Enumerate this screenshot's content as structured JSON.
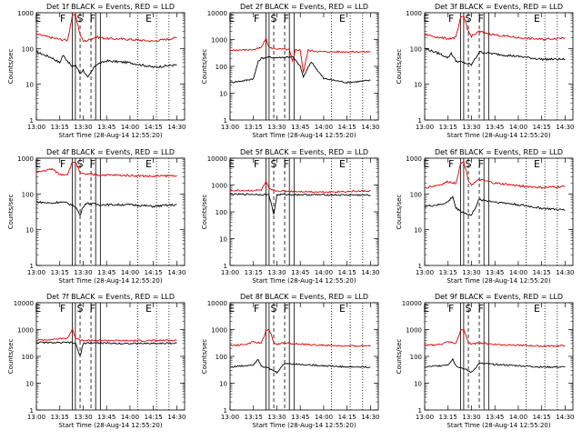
{
  "x_tick_labels": [
    "13:00",
    "13:15",
    "13:30",
    "13:45",
    "14:00",
    "14:15",
    "14:30"
  ],
  "y_tick_labels": [
    "1",
    "10",
    "100",
    "1000",
    "10000"
  ],
  "x_axis_label": "Start Time (28-Aug-14 12:55:20)",
  "y_axis_label": "Counts/sec",
  "colors": {
    "events": "#000000",
    "lld": "#dd0000",
    "axes": "#000000"
  },
  "chart_data": [
    {
      "type": "line",
      "title": "Det 1f BLACK = Events, RED = LLD",
      "ylim": [
        1,
        1000
      ],
      "log_y": true,
      "region_labels": [
        "E",
        "F",
        "S",
        "F",
        "E"
      ],
      "series": [
        {
          "name": "Events",
          "x": [
            "13:00",
            "13:10",
            "13:15",
            "13:17",
            "13:20",
            "13:23",
            "13:25",
            "13:28",
            "13:30",
            "13:33",
            "13:38",
            "13:45",
            "14:00",
            "14:15",
            "14:30"
          ],
          "values": [
            80,
            55,
            40,
            65,
            45,
            30,
            35,
            20,
            25,
            15,
            35,
            45,
            40,
            30,
            35
          ]
        },
        {
          "name": "LLD",
          "x": [
            "13:00",
            "13:10",
            "13:15",
            "13:20",
            "13:23",
            "13:25",
            "13:28",
            "13:30",
            "13:33",
            "13:38",
            "13:45",
            "14:00",
            "14:15",
            "14:30"
          ],
          "values": [
            250,
            200,
            180,
            170,
            800,
            900,
            250,
            160,
            170,
            210,
            190,
            180,
            160,
            200
          ]
        }
      ]
    },
    {
      "type": "line",
      "title": "Det 2f BLACK = Events, RED = LLD",
      "ylim": [
        1,
        10000
      ],
      "log_y": true,
      "region_labels": [
        "E",
        "F",
        "S",
        "F",
        "E"
      ],
      "series": [
        {
          "name": "Events",
          "x": [
            "13:00",
            "13:10",
            "13:15",
            "13:18",
            "13:20",
            "13:25",
            "13:30",
            "13:40",
            "13:45",
            "13:47",
            "13:52",
            "14:00",
            "14:15",
            "14:30"
          ],
          "values": [
            25,
            30,
            35,
            150,
            200,
            220,
            210,
            230,
            100,
            40,
            150,
            35,
            25,
            30
          ]
        },
        {
          "name": "LLD",
          "x": [
            "13:00",
            "13:15",
            "13:20",
            "13:23",
            "13:25",
            "13:30",
            "13:38",
            "13:40",
            "13:42",
            "13:45",
            "13:47",
            "13:50",
            "13:52",
            "14:00",
            "14:30"
          ],
          "values": [
            400,
            420,
            500,
            1100,
            500,
            450,
            420,
            150,
            420,
            400,
            60,
            400,
            380,
            350,
            350
          ]
        }
      ]
    },
    {
      "type": "line",
      "title": "Det 3f BLACK = Events, RED = LLD",
      "ylim": [
        1,
        1000
      ],
      "log_y": true,
      "region_labels": [
        "E",
        "F",
        "S",
        "F",
        "E"
      ],
      "series": [
        {
          "name": "Events",
          "x": [
            "13:00",
            "13:10",
            "13:15",
            "13:17",
            "13:20",
            "13:25",
            "13:30",
            "13:35",
            "13:45",
            "14:00",
            "14:15",
            "14:30"
          ],
          "values": [
            100,
            70,
            55,
            75,
            45,
            40,
            35,
            80,
            70,
            60,
            50,
            50
          ]
        },
        {
          "name": "LLD",
          "x": [
            "13:00",
            "13:10",
            "13:15",
            "13:20",
            "13:23",
            "13:25",
            "13:28",
            "13:30",
            "13:35",
            "13:45",
            "14:00",
            "14:15",
            "14:30"
          ],
          "values": [
            250,
            200,
            190,
            200,
            700,
            800,
            300,
            220,
            300,
            240,
            200,
            180,
            200
          ]
        }
      ]
    },
    {
      "type": "line",
      "title": "Det 4f BLACK = Events, RED = LLD",
      "ylim": [
        1,
        1000
      ],
      "log_y": true,
      "region_labels": [
        "E",
        "F",
        "S",
        "F",
        "E"
      ],
      "series": [
        {
          "name": "Events",
          "x": [
            "13:00",
            "13:10",
            "13:15",
            "13:20",
            "13:25",
            "13:28",
            "13:30",
            "13:32",
            "13:40",
            "14:00",
            "14:15",
            "14:30"
          ],
          "values": [
            60,
            55,
            60,
            55,
            45,
            25,
            45,
            55,
            50,
            50,
            45,
            50
          ]
        },
        {
          "name": "LLD",
          "x": [
            "13:00",
            "13:10",
            "13:15",
            "13:20",
            "13:23",
            "13:25",
            "13:28",
            "13:30",
            "13:40",
            "14:00",
            "14:15",
            "14:30"
          ],
          "values": [
            400,
            500,
            350,
            360,
            750,
            800,
            380,
            360,
            340,
            330,
            310,
            330
          ]
        }
      ]
    },
    {
      "type": "line",
      "title": "Det 5f BLACK = Events, RED = LLD",
      "ylim": [
        1,
        10000
      ],
      "log_y": true,
      "region_labels": [
        "E",
        "F",
        "S",
        "F",
        "E"
      ],
      "series": [
        {
          "name": "Events",
          "x": [
            "13:00",
            "13:15",
            "13:20",
            "13:25",
            "13:28",
            "13:30",
            "13:32",
            "14:00",
            "14:30"
          ],
          "values": [
            450,
            450,
            440,
            430,
            80,
            420,
            440,
            430,
            420
          ]
        },
        {
          "name": "LLD",
          "x": [
            "13:00",
            "13:15",
            "13:20",
            "13:23",
            "13:25",
            "13:28",
            "13:30",
            "14:00",
            "14:30"
          ],
          "values": [
            620,
            620,
            650,
            1300,
            700,
            620,
            600,
            550,
            600
          ]
        }
      ]
    },
    {
      "type": "line",
      "title": "Det 6f BLACK = Events, RED = LLD",
      "ylim": [
        1,
        1000
      ],
      "log_y": true,
      "region_labels": [
        "E",
        "F",
        "S",
        "F",
        "E"
      ],
      "series": [
        {
          "name": "Events",
          "x": [
            "13:00",
            "13:10",
            "13:15",
            "13:18",
            "13:20",
            "13:25",
            "13:30",
            "13:35",
            "13:45",
            "14:00",
            "14:15",
            "14:30"
          ],
          "values": [
            45,
            50,
            60,
            85,
            40,
            30,
            25,
            70,
            60,
            50,
            40,
            35
          ]
        },
        {
          "name": "LLD",
          "x": [
            "13:00",
            "13:10",
            "13:15",
            "13:20",
            "13:23",
            "13:25",
            "13:28",
            "13:30",
            "13:35",
            "13:45",
            "14:00",
            "14:15",
            "14:30"
          ],
          "values": [
            150,
            180,
            220,
            200,
            700,
            800,
            250,
            180,
            250,
            200,
            170,
            150,
            160
          ]
        }
      ]
    },
    {
      "type": "line",
      "title": "Det 7f BLACK = Events, RED = LLD",
      "ylim": [
        1,
        10000
      ],
      "log_y": true,
      "region_labels": [
        "E",
        "F",
        "S",
        "F",
        "E"
      ],
      "series": [
        {
          "name": "Events",
          "x": [
            "13:00",
            "13:15",
            "13:20",
            "13:25",
            "13:28",
            "13:30",
            "13:32",
            "14:00",
            "14:30"
          ],
          "values": [
            330,
            320,
            330,
            310,
            100,
            300,
            320,
            300,
            310
          ]
        },
        {
          "name": "LLD",
          "x": [
            "13:00",
            "13:15",
            "13:20",
            "13:23",
            "13:25",
            "13:28",
            "13:30",
            "14:00",
            "14:30"
          ],
          "values": [
            400,
            450,
            480,
            1000,
            500,
            420,
            400,
            380,
            400
          ]
        }
      ]
    },
    {
      "type": "line",
      "title": "Det 8f BLACK = Events, RED = LLD",
      "ylim": [
        1,
        10000
      ],
      "log_y": true,
      "region_labels": [
        "E",
        "F",
        "S",
        "F",
        "E"
      ],
      "series": [
        {
          "name": "Events",
          "x": [
            "13:00",
            "13:10",
            "13:15",
            "13:18",
            "13:20",
            "13:25",
            "13:30",
            "13:35",
            "13:45",
            "14:00",
            "14:15",
            "14:30"
          ],
          "values": [
            40,
            45,
            50,
            80,
            45,
            35,
            25,
            55,
            50,
            45,
            40,
            40
          ]
        },
        {
          "name": "LLD",
          "x": [
            "13:00",
            "13:10",
            "13:15",
            "13:20",
            "13:23",
            "13:25",
            "13:28",
            "13:30",
            "13:35",
            "13:45",
            "14:00",
            "14:15",
            "14:30"
          ],
          "values": [
            250,
            280,
            350,
            300,
            900,
            1000,
            350,
            280,
            320,
            280,
            260,
            240,
            250
          ]
        }
      ]
    },
    {
      "type": "line",
      "title": "Det 9f BLACK = Events, RED = LLD",
      "ylim": [
        1,
        10000
      ],
      "log_y": true,
      "region_labels": [
        "E",
        "F",
        "S",
        "F",
        "E"
      ],
      "series": [
        {
          "name": "Events",
          "x": [
            "13:00",
            "13:10",
            "13:15",
            "13:18",
            "13:20",
            "13:25",
            "13:30",
            "13:35",
            "13:45",
            "14:00",
            "14:15",
            "14:30"
          ],
          "values": [
            40,
            45,
            50,
            80,
            45,
            35,
            25,
            55,
            50,
            45,
            40,
            40
          ]
        },
        {
          "name": "LLD",
          "x": [
            "13:00",
            "13:10",
            "13:15",
            "13:20",
            "13:23",
            "13:25",
            "13:28",
            "13:30",
            "13:35",
            "13:45",
            "14:00",
            "14:15",
            "14:30"
          ],
          "values": [
            250,
            280,
            350,
            300,
            900,
            1000,
            350,
            280,
            320,
            280,
            260,
            240,
            250
          ]
        }
      ]
    }
  ]
}
